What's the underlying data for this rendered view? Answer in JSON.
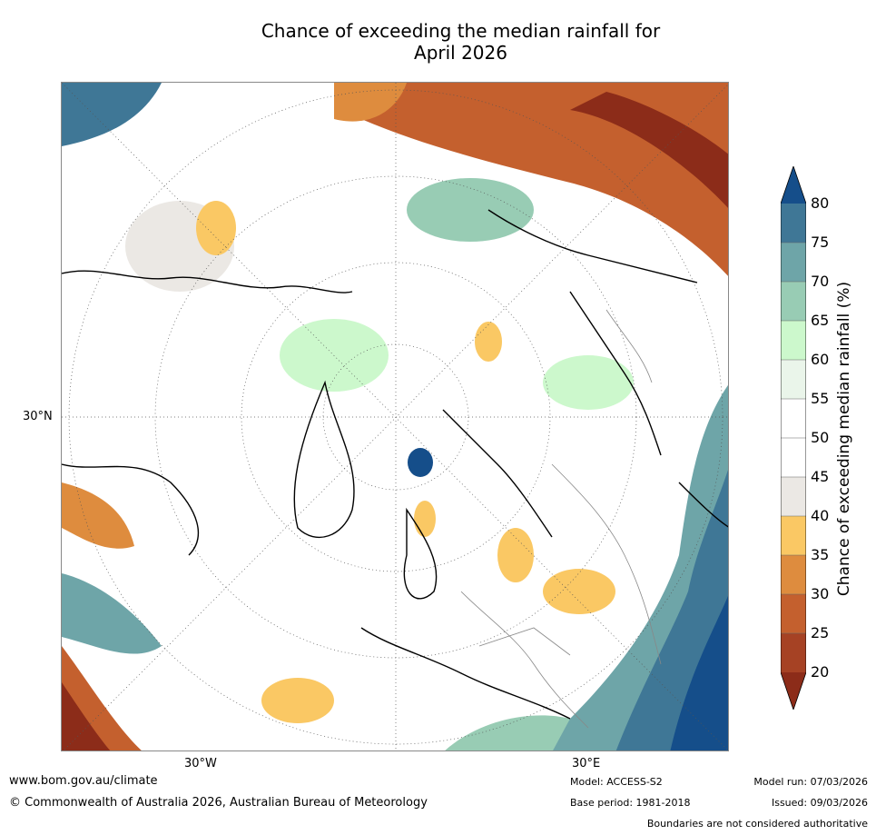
{
  "title_line1": "Chance of exceeding the median rainfall for",
  "title_line2": "April 2026",
  "map_labels": {
    "lat_30n": "30°N",
    "lon_30w": "30°W",
    "lon_30e": "30°E"
  },
  "colorbar": {
    "title": "Chance of exceeding median rainfall (%)",
    "ticks": [
      "80",
      "75",
      "70",
      "65",
      "60",
      "55",
      "50",
      "45",
      "40",
      "35",
      "30",
      "25",
      "20"
    ],
    "colors": {
      "over": "#154e8a",
      "c75_80": "#3f7796",
      "c70_75": "#6ea5a8",
      "c65_70": "#98ccb4",
      "c60_65": "#ccf8cc",
      "c55_60": "#eaf5ea",
      "c50_55": "#ffffff",
      "c45_50": "#ffffff",
      "c40_45": "#ebe8e4",
      "c35_40": "#fac864",
      "c30_35": "#de8c3e",
      "c25_30": "#c4602e",
      "c20_25": "#a64224",
      "under": "#8c2c19"
    }
  },
  "footer": {
    "url": "www.bom.gov.au/climate",
    "copyright": "© Commonwealth of Australia 2026, Australian Bureau of Meteorology",
    "model": "Model: ACCESS-S2",
    "base_period": "Base period: 1981-2018",
    "model_run": "Model run: 07/03/2026",
    "issued": "Issued: 09/03/2026",
    "disclaimer": "Boundaries are not considered authoritative"
  }
}
